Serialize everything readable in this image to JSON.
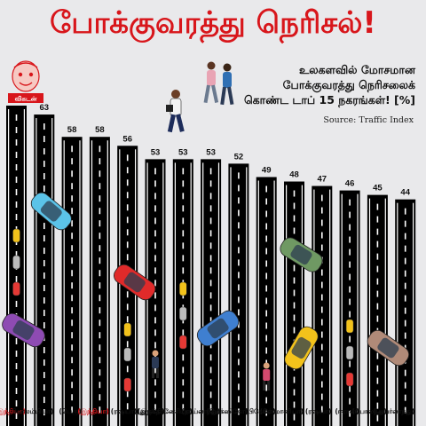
{
  "header": {
    "title": "போக்குவரத்து நெரிசல்!",
    "subtitle_lines": [
      "உலகளவில் மோசமான",
      "போக்குவரத்து நெரிசலைக்",
      "கொண்ட டாப் 15 நகரங்கள்! [%]"
    ],
    "source": "Source: Traffic Index",
    "logo_text": "விகடன்"
  },
  "colors": {
    "title": "#d8161b",
    "road": "#000000",
    "dash": "#ffffff",
    "city_label": "#111111",
    "highlight_label": "#d8161b"
  },
  "chart_data": {
    "type": "bar",
    "title": "உலகளவில் மோசமான போக்குவரத்து நெரிசலைக் கொண்ட டாப் 15 நகரங்கள்! [%]",
    "categories": [
      "(இந்தியா)",
      "(கொலம்பியா)",
      "(பெரு)",
      "(இந்தியா)",
      "(ரஷ்யா)",
      "(துருக்கி)",
      "(இந்தோனேசியா)",
      "(தாய்லாந்து)",
      "(மெக்ஸிகோ)",
      "(பிரேசில்)",
      "(ரோமானியா)",
      "(ரஷ்யா)",
      "(ஈரான்)",
      "(போலந்து)",
      "(அயர்லாந்து)"
    ],
    "highlighted": [
      0,
      3
    ],
    "values": [
      65,
      63,
      58,
      58,
      56,
      53,
      53,
      53,
      52,
      49,
      48,
      47,
      46,
      45,
      44
    ],
    "ylabel": "%",
    "ylim": [
      0,
      70
    ]
  }
}
